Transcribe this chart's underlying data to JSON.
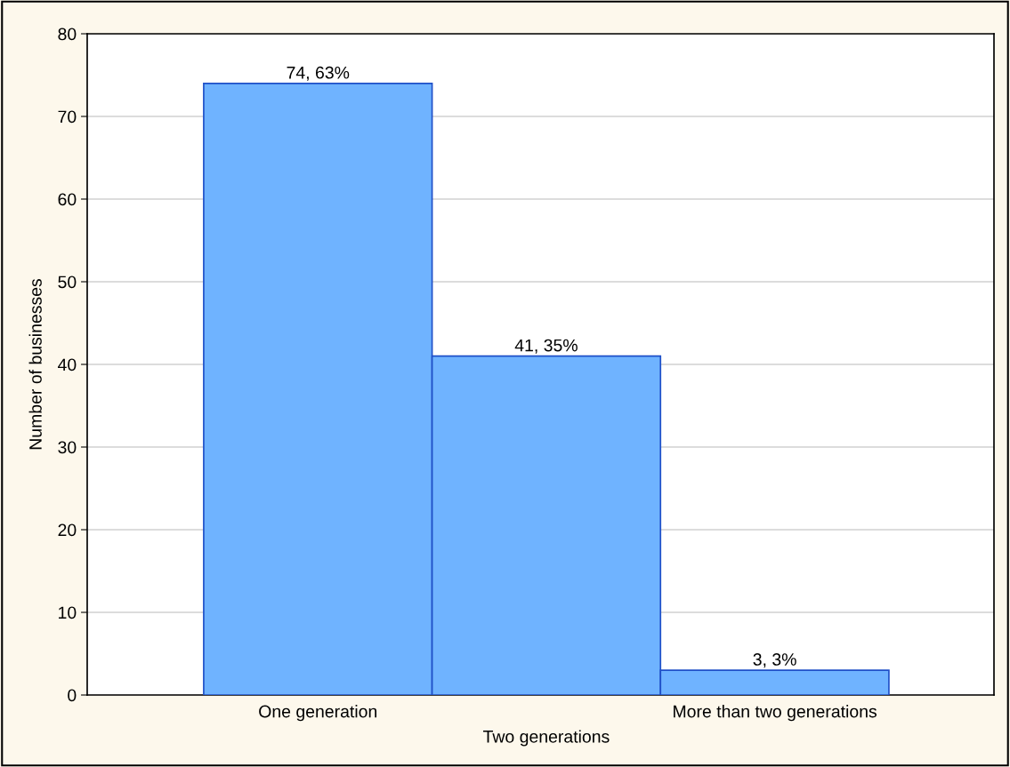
{
  "chart_data": {
    "type": "bar",
    "ylabel": "Number of businesses",
    "categories": [
      "One generation",
      "Two generations",
      "More than two generations"
    ],
    "series": [
      {
        "color": "#6fb3ff",
        "values": [
          74,
          41,
          3
        ],
        "value_labels": [
          "74, 63%",
          "41, 35%",
          "3, 3%"
        ]
      }
    ],
    "ylim": [
      0,
      80
    ],
    "yticks": [
      0,
      10,
      20,
      30,
      40,
      50,
      60,
      70,
      80
    ],
    "grid": "y"
  }
}
